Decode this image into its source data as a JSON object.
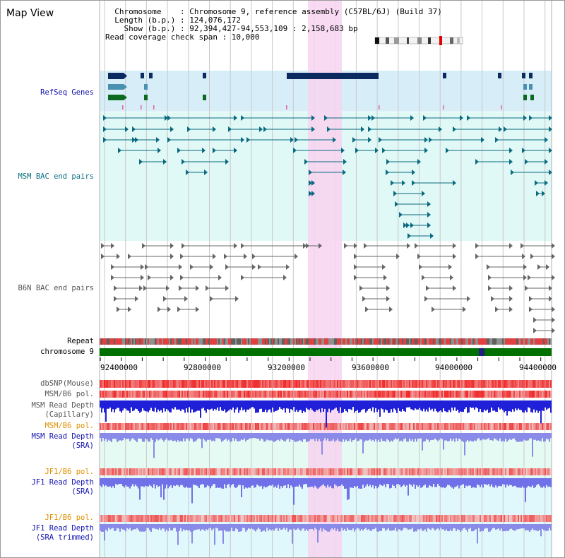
{
  "header": {
    "title": "Map View",
    "info_lines": [
      "  Chromosome    : Chromosome 9, reference assembly (C57BL/6J) (Build 37)",
      "  Length (b.p.) : 124,076,172",
      "    Show (b.p.) : 92,394,427-94,553,109 : 2,158,683 bp",
      "Read coverage check span : 10,000"
    ]
  },
  "tracks": {
    "refseq": "RefSeq Genes",
    "msm_bac": "MSM BAC end pairs",
    "b6n_bac": "B6N BAC end pairs",
    "repeat": "Repeat",
    "chromosome": "chromosome 9",
    "dbsnp": "dbSNP(Mouse)",
    "msm_b6_pol": "MSM/B6 pol.",
    "msm_depth_cap_1": "MSM Read Depth",
    "msm_depth_cap_2": "(Capillary)",
    "msm_b6_pol2": "MSM/B6 pol.",
    "msm_depth_sra_1": "MSM Read Depth",
    "msm_depth_sra_2": "(SRA)",
    "jf1_b6_pol": "JF1/B6 pol.",
    "jf1_depth_sra_1": "JF1 Read Depth",
    "jf1_depth_sra_2": "(SRA)",
    "jf1_b6_pol2": "JF1/B6 pol.",
    "jf1_depth_trim_1": "JF1 Read Depth",
    "jf1_depth_trim_2": "(SRA trimmed)"
  },
  "axis": {
    "ticks": [
      "92400000",
      "92800000",
      "93200000",
      "93600000",
      "94000000",
      "94400000"
    ]
  },
  "colors": {
    "label_blue": "#1010b0",
    "label_teal": "#0a7080",
    "label_gray": "#555555",
    "label_orange": "#e09000",
    "highlight": "#f7d3f0",
    "refseq_bg": "#d7eef9",
    "msm_bg": "#e0f8f6",
    "gridline": "#c8c8c8"
  }
}
